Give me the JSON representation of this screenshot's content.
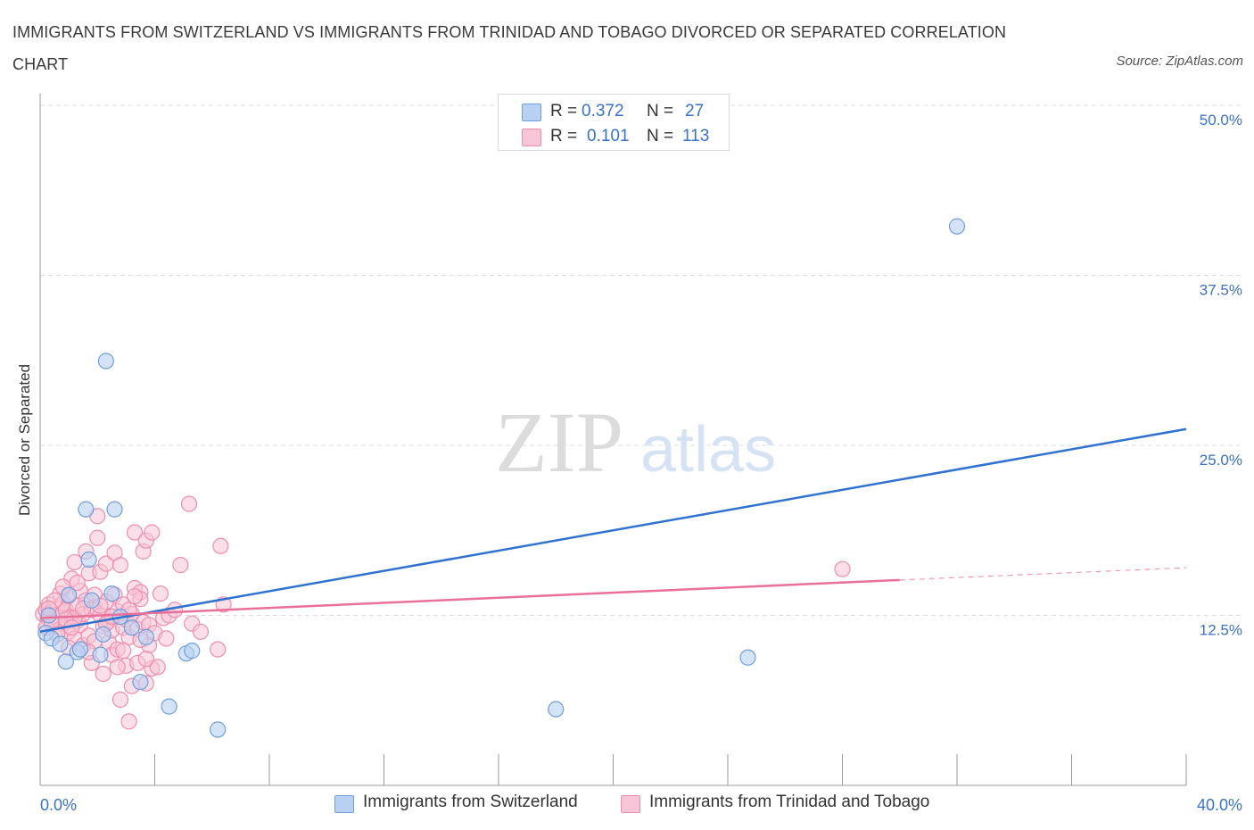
{
  "header": {
    "title": "IMMIGRANTS FROM SWITZERLAND VS IMMIGRANTS FROM TRINIDAD AND TOBAGO DIVORCED OR SEPARATED CORRELATION CHART",
    "source": "Source: ZipAtlas.com"
  },
  "watermark": {
    "zip": "ZIP",
    "atlas": "atlas"
  },
  "legend": {
    "rows": [
      {
        "r_label": "R =",
        "r_value": "0.372",
        "n_label": "N =",
        "n_value": "27"
      },
      {
        "r_label": "R =",
        "r_value": "0.101",
        "n_label": "N =",
        "n_value": "113"
      }
    ]
  },
  "colors": {
    "blue_fill": "#b8d0f2",
    "blue_stroke": "#6f9fdc",
    "blue_line": "#2f72cf",
    "pink_fill": "#f8c5d6",
    "pink_stroke": "#ee8eae",
    "pink_line": "#e8709a",
    "grid": "#dddddd",
    "tick_label": "#3a72c4"
  },
  "chart_data": {
    "type": "scatter",
    "title": "IMMIGRANTS FROM SWITZERLAND VS IMMIGRANTS FROM TRINIDAD AND TOBAGO DIVORCED OR SEPARATED CORRELATION CHART",
    "xlabel": "",
    "ylabel": "Divorced or Separated",
    "xlim": [
      0,
      40
    ],
    "ylim": [
      0,
      50
    ],
    "x_tick_labels": [
      "0.0%",
      "40.0%"
    ],
    "y_ticks": [
      12.5,
      25.0,
      37.5,
      50.0
    ],
    "y_tick_labels": [
      "12.5%",
      "25.0%",
      "37.5%",
      "50.0%"
    ],
    "grid": true,
    "legend_position": "top-center",
    "series": [
      {
        "name": "Immigrants from Switzerland",
        "color": "blue",
        "trend": {
          "x": [
            0,
            40
          ],
          "y": [
            11.3,
            26.2
          ]
        },
        "points": [
          [
            0.2,
            11.2
          ],
          [
            0.4,
            10.8
          ],
          [
            0.7,
            10.4
          ],
          [
            0.9,
            9.1
          ],
          [
            1.0,
            14.0
          ],
          [
            1.3,
            9.8
          ],
          [
            1.4,
            10.0
          ],
          [
            1.6,
            20.3
          ],
          [
            1.7,
            16.6
          ],
          [
            1.8,
            13.6
          ],
          [
            2.1,
            9.6
          ],
          [
            2.3,
            31.2
          ],
          [
            2.5,
            14.1
          ],
          [
            2.6,
            20.3
          ],
          [
            2.8,
            12.4
          ],
          [
            3.2,
            11.6
          ],
          [
            3.5,
            7.6
          ],
          [
            3.7,
            10.9
          ],
          [
            4.5,
            5.8
          ],
          [
            5.1,
            9.7
          ],
          [
            5.3,
            9.9
          ],
          [
            6.2,
            4.1
          ],
          [
            18.0,
            5.6
          ],
          [
            24.7,
            9.4
          ],
          [
            32.0,
            41.1
          ],
          [
            0.3,
            12.5
          ],
          [
            2.2,
            11.1
          ]
        ]
      },
      {
        "name": "Immigrants from Trinidad and Tobago",
        "color": "pink",
        "trend": {
          "x": [
            0,
            30
          ],
          "y": [
            12.3,
            15.1
          ]
        },
        "trend_dashed": {
          "x": [
            30,
            40
          ],
          "y": [
            15.1,
            16.0
          ]
        },
        "points": [
          [
            0.1,
            12.6
          ],
          [
            0.2,
            12.9
          ],
          [
            0.3,
            12.2
          ],
          [
            0.3,
            13.3
          ],
          [
            0.4,
            12.8
          ],
          [
            0.5,
            11.9
          ],
          [
            0.5,
            12.5
          ],
          [
            0.6,
            13.0
          ],
          [
            0.6,
            12.3
          ],
          [
            0.7,
            14.1
          ],
          [
            0.7,
            11.5
          ],
          [
            0.8,
            12.7
          ],
          [
            0.8,
            13.4
          ],
          [
            0.9,
            12.0
          ],
          [
            0.9,
            12.9
          ],
          [
            1.0,
            11.3
          ],
          [
            1.0,
            13.9
          ],
          [
            1.1,
            12.4
          ],
          [
            1.1,
            15.2
          ],
          [
            1.2,
            16.4
          ],
          [
            1.2,
            10.8
          ],
          [
            1.3,
            13.2
          ],
          [
            1.3,
            12.1
          ],
          [
            1.4,
            14.3
          ],
          [
            1.4,
            11.8
          ],
          [
            1.5,
            10.3
          ],
          [
            1.5,
            12.6
          ],
          [
            1.6,
            13.6
          ],
          [
            1.6,
            17.2
          ],
          [
            1.7,
            15.6
          ],
          [
            1.7,
            11.0
          ],
          [
            1.8,
            12.9
          ],
          [
            1.8,
            9.0
          ],
          [
            1.9,
            13.1
          ],
          [
            1.9,
            10.6
          ],
          [
            2.0,
            19.8
          ],
          [
            2.0,
            18.2
          ],
          [
            2.1,
            15.7
          ],
          [
            2.1,
            12.5
          ],
          [
            2.2,
            11.7
          ],
          [
            2.2,
            8.2
          ],
          [
            2.3,
            16.3
          ],
          [
            2.3,
            13.5
          ],
          [
            2.4,
            10.5
          ],
          [
            2.4,
            12.1
          ],
          [
            2.5,
            11.4
          ],
          [
            2.5,
            9.6
          ],
          [
            2.6,
            17.1
          ],
          [
            2.6,
            14.0
          ],
          [
            2.7,
            12.8
          ],
          [
            2.7,
            10.0
          ],
          [
            2.8,
            16.2
          ],
          [
            2.8,
            6.3
          ],
          [
            2.9,
            13.3
          ],
          [
            2.9,
            11.6
          ],
          [
            3.0,
            8.8
          ],
          [
            3.0,
            12.2
          ],
          [
            3.1,
            10.9
          ],
          [
            3.1,
            4.7
          ],
          [
            3.2,
            12.6
          ],
          [
            3.2,
            7.3
          ],
          [
            3.3,
            14.5
          ],
          [
            3.3,
            18.6
          ],
          [
            3.4,
            9.0
          ],
          [
            3.4,
            11.5
          ],
          [
            3.5,
            14.2
          ],
          [
            3.5,
            13.7
          ],
          [
            3.6,
            17.2
          ],
          [
            3.6,
            12.0
          ],
          [
            3.7,
            18.0
          ],
          [
            3.7,
            7.5
          ],
          [
            3.8,
            11.8
          ],
          [
            3.8,
            10.3
          ],
          [
            3.9,
            18.6
          ],
          [
            3.9,
            8.6
          ],
          [
            4.0,
            11.2
          ],
          [
            4.1,
            8.7
          ],
          [
            4.2,
            14.1
          ],
          [
            4.3,
            12.3
          ],
          [
            4.4,
            10.8
          ],
          [
            4.5,
            12.5
          ],
          [
            4.7,
            12.9
          ],
          [
            4.9,
            16.2
          ],
          [
            5.2,
            20.7
          ],
          [
            5.3,
            11.9
          ],
          [
            5.6,
            11.3
          ],
          [
            6.2,
            10.0
          ],
          [
            6.3,
            17.6
          ],
          [
            6.4,
            13.3
          ],
          [
            0.2,
            11.6
          ],
          [
            0.4,
            12.0
          ],
          [
            0.5,
            13.6
          ],
          [
            0.6,
            11.1
          ],
          [
            0.8,
            14.6
          ],
          [
            1.0,
            10.1
          ],
          [
            1.2,
            12.3
          ],
          [
            1.3,
            14.9
          ],
          [
            1.5,
            13.0
          ],
          [
            1.7,
            9.8
          ],
          [
            1.9,
            14.0
          ],
          [
            2.1,
            13.2
          ],
          [
            2.3,
            11.9
          ],
          [
            2.5,
            12.4
          ],
          [
            2.7,
            8.7
          ],
          [
            2.9,
            9.9
          ],
          [
            3.1,
            12.9
          ],
          [
            3.3,
            13.9
          ],
          [
            3.5,
            10.7
          ],
          [
            3.7,
            9.3
          ],
          [
            28.0,
            15.9
          ],
          [
            0.3,
            13.0
          ],
          [
            0.9,
            12.2
          ],
          [
            1.1,
            11.6
          ]
        ]
      }
    ]
  }
}
